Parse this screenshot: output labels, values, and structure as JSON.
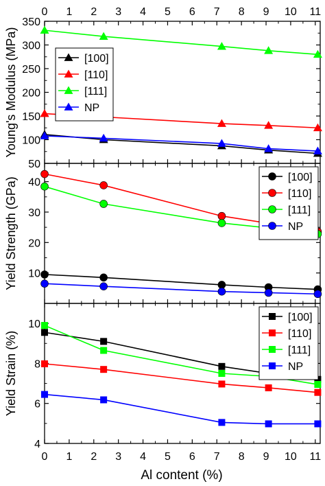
{
  "figure": {
    "xlabel": "Al content (%)",
    "top_axis_ticks": [
      "0",
      "1",
      "2",
      "3",
      "4",
      "5",
      "6",
      "7",
      "8",
      "9",
      "10",
      "11"
    ]
  },
  "chart_data": [
    {
      "type": "line",
      "ylabel": "Young's Modulus (MPa)",
      "xlabel": "Al content (%)",
      "xlim": [
        0,
        11.2
      ],
      "ylim": [
        50,
        350
      ],
      "xticks": [
        0,
        1,
        2,
        3,
        4,
        5,
        6,
        7,
        8,
        9,
        10,
        11
      ],
      "yticks": [
        50,
        100,
        150,
        200,
        250,
        300,
        350
      ],
      "marker": "triangle",
      "legend_position": "top-left",
      "grid": false,
      "x": [
        0,
        2.4,
        7.2,
        9.1,
        11.1
      ],
      "series": [
        {
          "name": "[100]",
          "color": "#000000",
          "values": [
            111,
            100,
            87,
            78,
            71
          ]
        },
        {
          "name": "[110]",
          "color": "#ff0000",
          "values": [
            155,
            148,
            134,
            130,
            125
          ]
        },
        {
          "name": "[111]",
          "color": "#00ff00",
          "values": [
            331,
            318,
            297,
            288,
            280
          ]
        },
        {
          "name": "NP",
          "color": "#0000ff",
          "values": [
            108,
            103,
            92,
            81,
            76
          ]
        }
      ]
    },
    {
      "type": "line",
      "ylabel": "Yield Strength (GPa)",
      "xlabel": "Al content (%)",
      "xlim": [
        0,
        11.2
      ],
      "ylim": [
        0,
        46
      ],
      "xticks": [
        0,
        1,
        2,
        3,
        4,
        5,
        6,
        7,
        8,
        9,
        10,
        11
      ],
      "yticks": [
        10,
        20,
        30,
        40
      ],
      "marker": "circle",
      "legend_position": "top-right",
      "grid": false,
      "x": [
        0,
        2.4,
        7.2,
        9.1,
        11.1
      ],
      "series": [
        {
          "name": "[100]",
          "color": "#000000",
          "values": [
            9.5,
            8.5,
            6.1,
            5.3,
            4.6
          ]
        },
        {
          "name": "[110]",
          "color": "#ff0000",
          "values": [
            42.5,
            38.8,
            28.7,
            26.3,
            23.6
          ]
        },
        {
          "name": "[111]",
          "color": "#00ff00",
          "values": [
            38.4,
            32.7,
            26.4,
            24.8,
            22.8
          ]
        },
        {
          "name": "NP",
          "color": "#0000ff",
          "values": [
            6.5,
            5.6,
            3.9,
            3.5,
            3.1
          ]
        }
      ]
    },
    {
      "type": "line",
      "ylabel": "Yield Strain (%)",
      "xlabel": "Al content (%)",
      "xlim": [
        0,
        11.2
      ],
      "ylim": [
        4,
        11
      ],
      "xticks": [
        0,
        1,
        2,
        3,
        4,
        5,
        6,
        7,
        8,
        9,
        10,
        11
      ],
      "yticks": [
        4,
        6,
        8,
        10
      ],
      "marker": "square",
      "legend_position": "top-right",
      "grid": false,
      "x": [
        0,
        2.4,
        7.2,
        9.1,
        11.1
      ],
      "series": [
        {
          "name": "[100]",
          "color": "#000000",
          "values": [
            9.55,
            9.1,
            7.85,
            7.5,
            7.2
          ]
        },
        {
          "name": "[110]",
          "color": "#ff0000",
          "values": [
            7.98,
            7.7,
            6.97,
            6.78,
            6.55
          ]
        },
        {
          "name": "[111]",
          "color": "#00ff00",
          "values": [
            9.9,
            8.65,
            7.5,
            7.35,
            6.95
          ]
        },
        {
          "name": "NP",
          "color": "#0000ff",
          "values": [
            6.45,
            6.18,
            5.05,
            4.98,
            4.98
          ]
        }
      ]
    }
  ]
}
